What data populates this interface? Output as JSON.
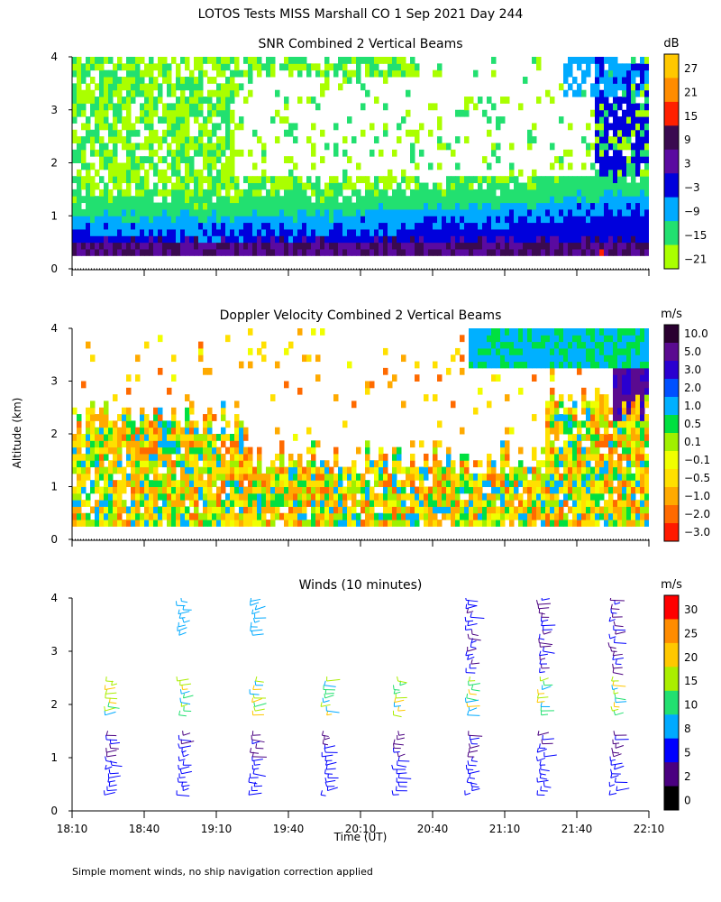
{
  "header": {
    "title": "LOTOS Tests MISS Marshall CO   1 Sep 2021 Day 244"
  },
  "footer": {
    "note": "Simple moment winds, no ship navigation correction applied"
  },
  "chart_data": [
    {
      "type": "heatmap",
      "title": "SNR Combined 2 Vertical Beams",
      "ylabel": "Altitude (km)",
      "ylim": [
        0,
        4
      ],
      "yticks": [
        "0",
        "1",
        "2",
        "3",
        "4"
      ],
      "units": "dB",
      "colorbar_ticks": [
        "27",
        "21",
        "15",
        "9",
        "3",
        "−3",
        "−9",
        "−15",
        "−21"
      ],
      "colors": [
        "#ffc800",
        "#ff8c00",
        "#ff2000",
        "#3a0a50",
        "#5a0aa0",
        "#0000dc",
        "#00aaff",
        "#22e070",
        "#aaff00"
      ],
      "description_layers": [
        {
          "altitude_km": [
            0.25,
            0.55
          ],
          "snr_db": 9
        },
        {
          "altitude_km": [
            0.55,
            1.0
          ],
          "snr_db": 0
        },
        {
          "altitude_km": [
            1.0,
            1.5
          ],
          "snr_db": -9
        },
        {
          "altitude_km": [
            1.5,
            4.0
          ],
          "snr_db": -15
        }
      ]
    },
    {
      "type": "heatmap",
      "title": "Doppler Velocity Combined 2 Vertical Beams",
      "ylabel": "Altitude (km)",
      "ylim": [
        0,
        4
      ],
      "yticks": [
        "0",
        "1",
        "2",
        "3",
        "4"
      ],
      "units": "m/s",
      "colorbar_ticks": [
        "10.0",
        "5.0",
        "3.0",
        "2.0",
        "1.0",
        "0.5",
        "0.1",
        "−0.1",
        "−0.5",
        "−1.0",
        "−2.0",
        "−3.0"
      ],
      "colors": [
        "#2a0030",
        "#5a0a90",
        "#2a00d0",
        "#0050ff",
        "#00b0ff",
        "#00e040",
        "#a0f000",
        "#f0ff00",
        "#ffe000",
        "#ffaa00",
        "#ff6a00",
        "#ff1a00"
      ]
    },
    {
      "type": "scatter",
      "title": "Winds (10 minutes)",
      "xlabel": "Time (UT)",
      "ylabel": "Altitude (km)",
      "ylim": [
        0,
        4
      ],
      "yticks": [
        "0",
        "1",
        "2",
        "3",
        "4"
      ],
      "xticks": [
        "18:10",
        "18:40",
        "19:10",
        "19:40",
        "20:10",
        "20:40",
        "21:10",
        "21:40",
        "22:10"
      ],
      "units": "m/s",
      "colorbar_ticks": [
        "30",
        "25",
        "20",
        "15",
        "10",
        "8",
        "5",
        "2",
        "0"
      ],
      "colors": [
        "#ff0000",
        "#ff8c00",
        "#ffc800",
        "#aaee00",
        "#22e070",
        "#00aaff",
        "#0000ff",
        "#4a0080",
        "#000000"
      ],
      "profile_times": [
        "18:25",
        "18:55",
        "19:25",
        "19:55",
        "20:25",
        "20:55",
        "21:25",
        "21:55"
      ]
    }
  ]
}
